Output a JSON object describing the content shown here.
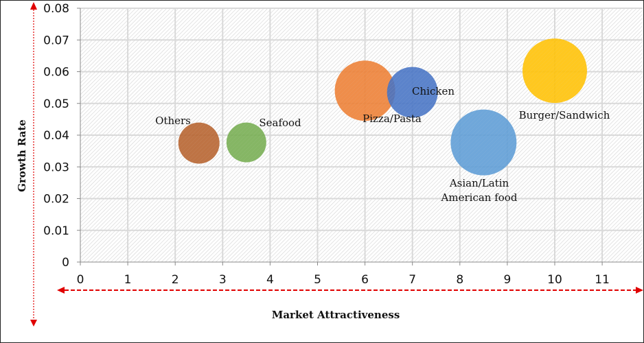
{
  "chart_data": {
    "type": "bubble",
    "title": "",
    "xlabel": "Market Attractiveness",
    "ylabel": "Growth Rate",
    "xlim": [
      0,
      11.9
    ],
    "ylim": [
      0,
      0.08
    ],
    "x_ticks": [
      "0",
      "1",
      "2",
      "3",
      "4",
      "5",
      "6",
      "7",
      "8",
      "9",
      "10",
      "11"
    ],
    "y_ticks": [
      "0",
      "0.01",
      "0.02",
      "0.03",
      "0.04",
      "0.05",
      "0.06",
      "0.07",
      "0.08"
    ],
    "grid": true,
    "legend": "none",
    "series": [
      {
        "name": "Others",
        "x": 2.5,
        "y": 0.0375,
        "size": 30,
        "color": "#B5602A",
        "label_lines": [
          "Others"
        ]
      },
      {
        "name": "Seafood",
        "x": 3.5,
        "y": 0.0377,
        "size": 29,
        "color": "#74AC4F",
        "label_lines": [
          "Seafood"
        ]
      },
      {
        "name": "Pizza/Pasta",
        "x": 6,
        "y": 0.054,
        "size": 44,
        "color": "#ED7D31",
        "label_lines": [
          "Pizza/Pasta"
        ]
      },
      {
        "name": "Chicken",
        "x": 7,
        "y": 0.0535,
        "size": 37,
        "color": "#4472C4",
        "label_lines": [
          "Chicken"
        ]
      },
      {
        "name": "Asian/Latin American food",
        "x": 8.5,
        "y": 0.0377,
        "size": 48,
        "color": "#5B9BD5",
        "label_lines": [
          "Asian/Latin",
          "American food"
        ]
      },
      {
        "name": "Burger/Sandwich",
        "x": 10,
        "y": 0.0603,
        "size": 47,
        "color": "#FFC000",
        "label_lines": [
          "Burger/Sandwich"
        ]
      }
    ],
    "annotations": [
      {
        "type": "arrow",
        "direction": "vertical-both",
        "color": "#E00000",
        "style": "dashed"
      },
      {
        "type": "arrow",
        "direction": "horizontal-both",
        "color": "#E00000",
        "style": "dashed"
      }
    ]
  },
  "labels": {
    "xlabel": "Market Attractiveness",
    "ylabel": "Growth Rate"
  }
}
